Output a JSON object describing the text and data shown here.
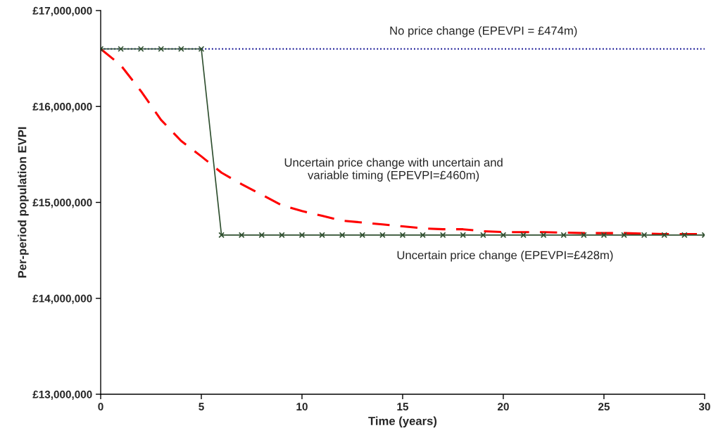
{
  "chart_data": {
    "type": "line",
    "xlabel": "Time (years)",
    "ylabel": "Per-period population EVPI",
    "xlim": [
      0,
      30
    ],
    "xticks": [
      0,
      5,
      10,
      15,
      20,
      25,
      30
    ],
    "ylim": [
      13000000,
      17000000
    ],
    "yticks": [
      {
        "value": 13000000,
        "label": "£13,000,000"
      },
      {
        "value": 14000000,
        "label": "£14,000,000"
      },
      {
        "value": 15000000,
        "label": "£15,000,000"
      },
      {
        "value": 16000000,
        "label": "£16,000,000"
      },
      {
        "value": 17000000,
        "label": "£17,000,000"
      }
    ],
    "grid": false,
    "legend": false,
    "series": [
      {
        "name": "No price change (EPEVPI = £474m)",
        "color": "#00008b",
        "line_style": "dotted",
        "marker": "none",
        "x": [
          0,
          30
        ],
        "values": [
          16600000,
          16600000
        ]
      },
      {
        "name": "Uncertain price change with uncertain and\nvariable timing (EPEVPI=£460m)",
        "color": "#ff0000",
        "line_style": "dashed",
        "marker": "none",
        "x": [
          0,
          1,
          2,
          3,
          4,
          5,
          6,
          7,
          8,
          9,
          10,
          11,
          12,
          13,
          14,
          15,
          16,
          17,
          18,
          19,
          20,
          22,
          24,
          26,
          28,
          30
        ],
        "values": [
          16600000,
          16430000,
          16160000,
          15860000,
          15640000,
          15480000,
          15310000,
          15190000,
          15080000,
          14970000,
          14910000,
          14860000,
          14810000,
          14790000,
          14770000,
          14750000,
          14730000,
          14720000,
          14720000,
          14700000,
          14690000,
          14690000,
          14680000,
          14680000,
          14670000,
          14670000
        ]
      },
      {
        "name": "Uncertain price change (EPEVPI=£428m)",
        "color": "#2f4f2f",
        "line_style": "solid",
        "marker": "cross",
        "x": [
          0,
          1,
          2,
          3,
          4,
          5,
          6,
          7,
          8,
          9,
          10,
          11,
          12,
          13,
          14,
          15,
          16,
          17,
          18,
          19,
          20,
          21,
          22,
          23,
          24,
          25,
          26,
          27,
          28,
          29,
          30
        ],
        "values": [
          16600000,
          16600000,
          16600000,
          16600000,
          16600000,
          16600000,
          14660000,
          14660000,
          14660000,
          14660000,
          14660000,
          14660000,
          14660000,
          14660000,
          14660000,
          14660000,
          14660000,
          14660000,
          14660000,
          14660000,
          14660000,
          14660000,
          14660000,
          14660000,
          14660000,
          14660000,
          14660000,
          14660000,
          14660000,
          14660000,
          14660000
        ]
      }
    ]
  }
}
